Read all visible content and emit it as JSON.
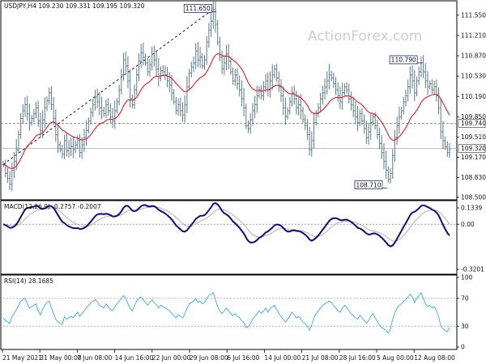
{
  "chart_data": {
    "type": "line",
    "symbol": "USDJPY,H4",
    "ohlc_label": "USDJPY,H4  109.230 109.331 109.195 109.320",
    "watermark": "ActionForex.com",
    "x_tick_labels": [
      "21 May 2021",
      "31 May 00:00",
      "7 Jun 08:00",
      "14 Jun 16:00",
      "22 Jun 00:00",
      "29 Jun 08:00",
      "6 Jul 16:00",
      "14 Jul 00:00",
      "21 Jul 08:00",
      "28 Jul 16:00",
      "5 Aug 00:00",
      "12 Aug 08:00"
    ],
    "colors": {
      "price": "#5b7a8a",
      "moving_average": "#e8192c",
      "macd": "#0b0e7a",
      "macd_signal": "#a9a9a9",
      "rsi": "#3aa8f0",
      "annotation_border": "#1a2b8c",
      "grid_dash": "#888888"
    },
    "price_panel": {
      "ylim": [
        108.5,
        111.75
      ],
      "y_tick_labels": [
        "111.550",
        "111.210",
        "110.870",
        "110.530",
        "110.190",
        "109.850",
        "109.510",
        "109.170",
        "108.830",
        "108.500"
      ],
      "highlight_labels": [
        "109.740",
        "109.320"
      ],
      "reference_line": 109.74,
      "last_price": 109.32,
      "trendline": {
        "from_idx": 0,
        "from_value": 109.05,
        "to_idx": 96,
        "to_value": 111.65
      },
      "annotations": [
        {
          "text": "111.650",
          "idx": 96,
          "value": 111.65
        },
        {
          "text": "110.790",
          "idx": 190,
          "value": 110.79
        },
        {
          "text": "108.710",
          "idx": 174,
          "value": 108.71
        }
      ],
      "closes": [
        109.05,
        108.9,
        108.82,
        108.72,
        108.95,
        109.1,
        109.3,
        109.55,
        109.82,
        109.95,
        110.05,
        109.9,
        109.75,
        109.82,
        109.9,
        110.0,
        109.78,
        109.62,
        109.8,
        110.0,
        110.12,
        110.25,
        110.05,
        109.82,
        109.55,
        109.38,
        109.3,
        109.22,
        109.45,
        109.28,
        109.32,
        109.35,
        109.3,
        109.38,
        109.45,
        109.25,
        109.38,
        109.5,
        109.62,
        109.78,
        109.92,
        110.05,
        110.18,
        110.1,
        110.0,
        109.95,
        109.9,
        110.05,
        109.95,
        109.85,
        109.78,
        109.95,
        110.1,
        110.3,
        110.55,
        110.8,
        110.7,
        110.45,
        110.15,
        110.05,
        110.3,
        110.55,
        110.78,
        110.92,
        110.85,
        110.75,
        110.6,
        110.72,
        110.9,
        110.8,
        110.65,
        110.5,
        110.62,
        110.6,
        110.55,
        110.45,
        110.38,
        110.25,
        110.1,
        109.95,
        110.05,
        109.95,
        109.88,
        110.05,
        110.35,
        110.58,
        110.68,
        110.75,
        110.95,
        110.8,
        110.85,
        110.7,
        110.8,
        111.1,
        111.3,
        111.45,
        111.65,
        111.4,
        111.1,
        110.85,
        110.65,
        110.75,
        110.9,
        110.78,
        110.6,
        110.45,
        110.55,
        110.4,
        110.3,
        110.15,
        110.0,
        109.7,
        109.65,
        109.8,
        109.95,
        110.05,
        110.2,
        110.3,
        110.2,
        110.35,
        110.45,
        110.3,
        110.45,
        110.55,
        110.65,
        110.5,
        110.35,
        110.2,
        110.0,
        109.85,
        109.95,
        110.1,
        110.25,
        110.15,
        110.0,
        110.05,
        109.95,
        109.8,
        109.7,
        109.55,
        109.3,
        109.45,
        109.75,
        109.9,
        110.0,
        110.15,
        110.25,
        110.35,
        110.45,
        110.55,
        110.5,
        110.4,
        110.3,
        110.2,
        110.1,
        110.25,
        110.35,
        110.3,
        110.15,
        110.05,
        109.95,
        109.85,
        109.75,
        109.9,
        109.78,
        109.65,
        109.5,
        109.6,
        109.75,
        109.85,
        109.7,
        109.55,
        109.4,
        109.25,
        109.1,
        108.95,
        108.8,
        108.9,
        109.2,
        109.5,
        109.7,
        109.85,
        109.95,
        110.1,
        110.2,
        110.35,
        110.55,
        110.45,
        110.25,
        110.45,
        110.6,
        110.75,
        110.6,
        110.45,
        110.35,
        110.4,
        110.3,
        110.35,
        110.2,
        110.0,
        109.6,
        109.45,
        109.35,
        109.25,
        109.3
      ]
    },
    "macd_panel": {
      "label": "MACD(12,26,9) -0.2757 -0.2007",
      "ylim": [
        -0.37,
        0.165
      ],
      "y_tick_labels": [
        "0.1339",
        "0.00",
        "-0.3201"
      ]
    },
    "rsi_panel": {
      "label": "RSI(14) 28.1685",
      "ylim": [
        0,
        100
      ],
      "y_tick_labels": [
        "100",
        "70",
        "30",
        "0"
      ],
      "levels": [
        70,
        30
      ],
      "values": [
        42,
        38,
        36,
        34,
        44,
        48,
        54,
        60,
        66,
        68,
        70,
        62,
        56,
        58,
        60,
        62,
        52,
        46,
        54,
        60,
        64,
        66,
        56,
        48,
        40,
        36,
        34,
        33,
        44,
        40,
        42,
        44,
        42,
        46,
        50,
        44,
        48,
        52,
        56,
        60,
        63,
        66,
        68,
        65,
        60,
        58,
        56,
        62,
        58,
        54,
        52,
        58,
        62,
        66,
        70,
        74,
        70,
        62,
        55,
        52,
        60,
        66,
        70,
        72,
        68,
        64,
        60,
        64,
        68,
        64,
        60,
        56,
        60,
        58,
        56,
        54,
        52,
        48,
        45,
        42,
        46,
        44,
        42,
        48,
        56,
        62,
        64,
        66,
        70,
        64,
        66,
        62,
        64,
        70,
        74,
        76,
        78,
        68,
        58,
        52,
        48,
        52,
        56,
        52,
        48,
        45,
        48,
        44,
        42,
        38,
        35,
        28,
        29,
        34,
        40,
        44,
        48,
        52,
        48,
        52,
        56,
        50,
        55,
        58,
        60,
        54,
        48,
        44,
        40,
        36,
        40,
        45,
        50,
        46,
        42,
        44,
        40,
        36,
        34,
        30,
        24,
        32,
        42,
        48,
        52,
        56,
        60,
        62,
        64,
        66,
        64,
        60,
        56,
        52,
        50,
        56,
        60,
        57,
        52,
        48,
        45,
        42,
        40,
        46,
        42,
        38,
        34,
        38,
        44,
        48,
        42,
        36,
        32,
        28,
        26,
        24,
        20,
        26,
        40,
        50,
        56,
        60,
        62,
        66,
        68,
        72,
        76,
        72,
        64,
        70,
        74,
        78,
        70,
        62,
        58,
        60,
        56,
        58,
        52,
        44,
        30,
        26,
        24,
        22,
        28
      ]
    }
  }
}
